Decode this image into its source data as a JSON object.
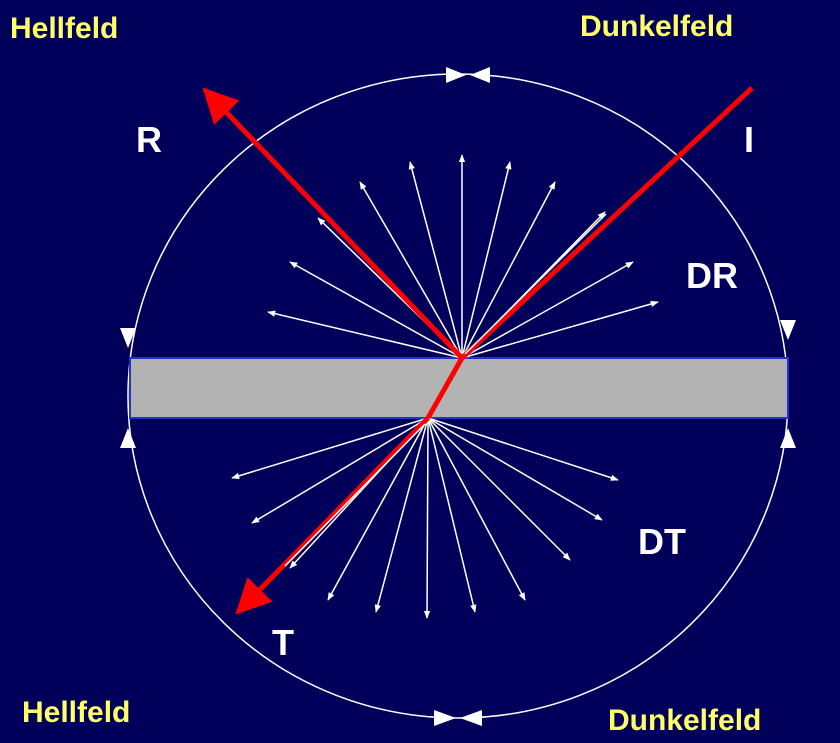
{
  "labels": {
    "top_left": "Hellfeld",
    "top_right": "Dunkelfeld",
    "bottom_left": "Hellfeld",
    "bottom_right": "Dunkelfeld"
  },
  "rays": {
    "reflected": "R",
    "incident": "I",
    "diffuse_reflection": "DR",
    "diffuse_transmission": "DT",
    "transmitted": "T"
  }
}
